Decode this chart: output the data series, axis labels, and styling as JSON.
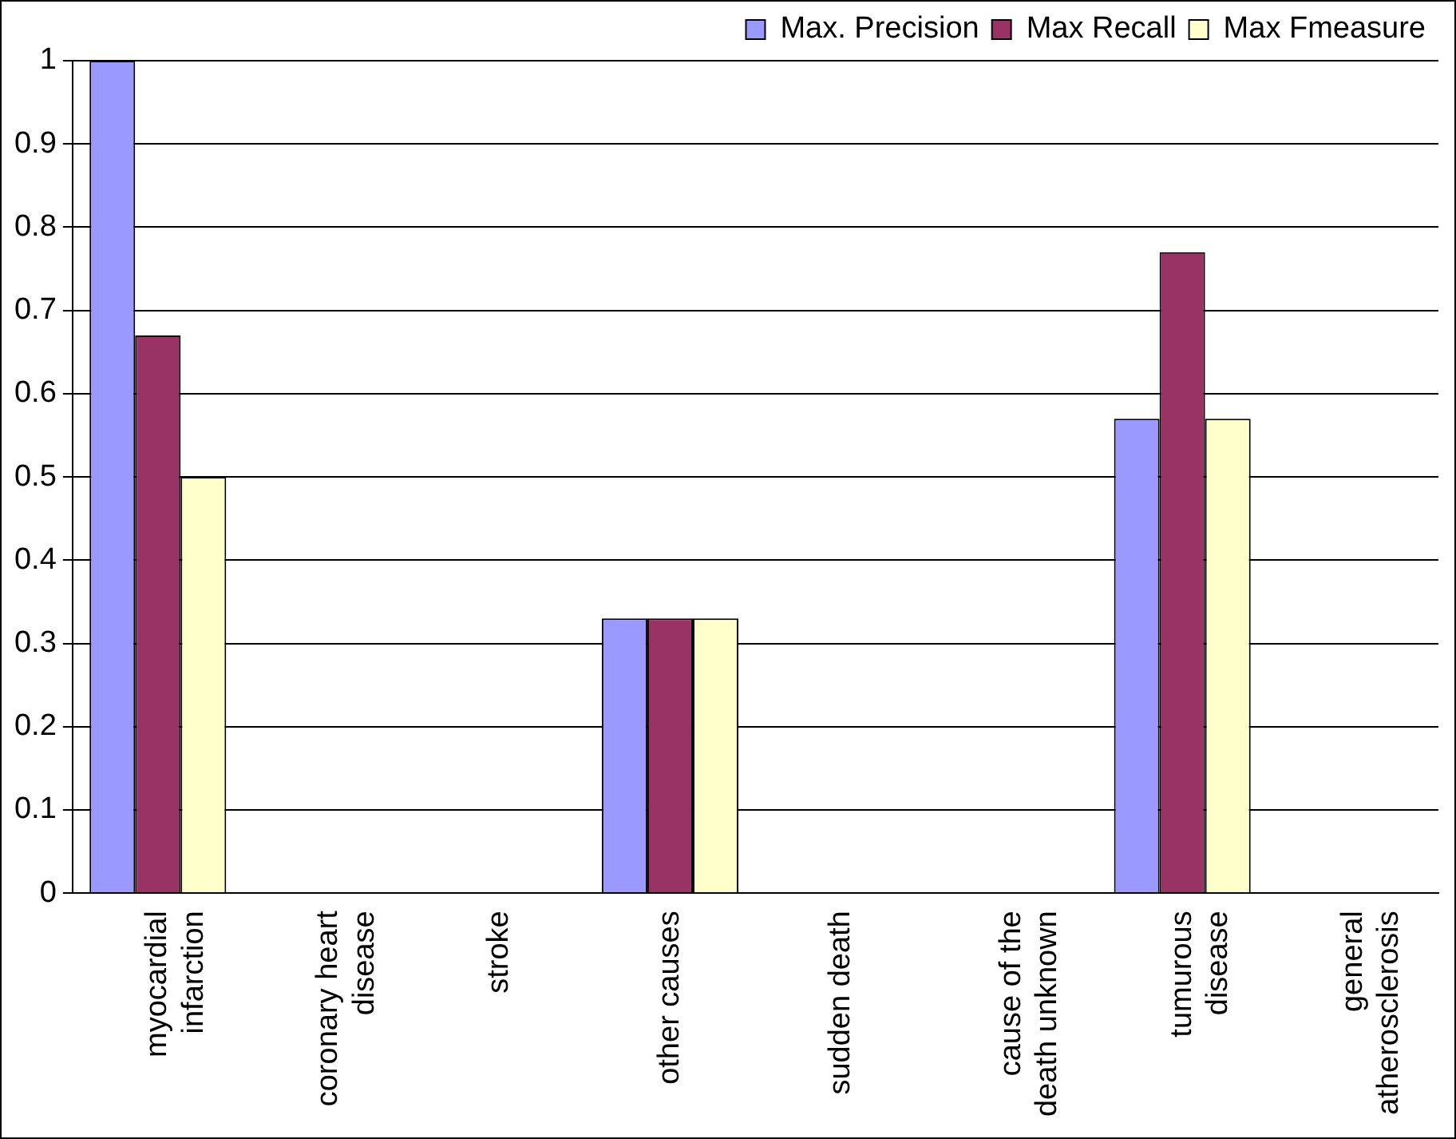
{
  "chart_data": {
    "type": "bar",
    "categories": [
      "myocardial infarction",
      "coronary heart disease",
      "stroke",
      "other causes",
      "sudden death",
      "cause of the death unknown",
      "tumurous disease",
      "general atherosclerosis"
    ],
    "series": [
      {
        "name": "Max. Precision",
        "color": "#9999ff",
        "values": [
          1,
          0,
          0,
          0.33,
          0,
          0,
          0.57,
          0
        ]
      },
      {
        "name": "Max Recall",
        "color": "#993366",
        "values": [
          0.67,
          0,
          0,
          0.33,
          0,
          0,
          0.77,
          0
        ]
      },
      {
        "name": "Max Fmeasure",
        "color": "#ffffcc",
        "values": [
          0.5,
          0,
          0,
          0.33,
          0,
          0,
          0.57,
          0
        ]
      }
    ],
    "ylim": [
      0,
      1
    ],
    "yticks": [
      0,
      0.1,
      0.2,
      0.3,
      0.4,
      0.5,
      0.6,
      0.7,
      0.8,
      0.9,
      1
    ],
    "grid": "y",
    "legend": "top"
  }
}
